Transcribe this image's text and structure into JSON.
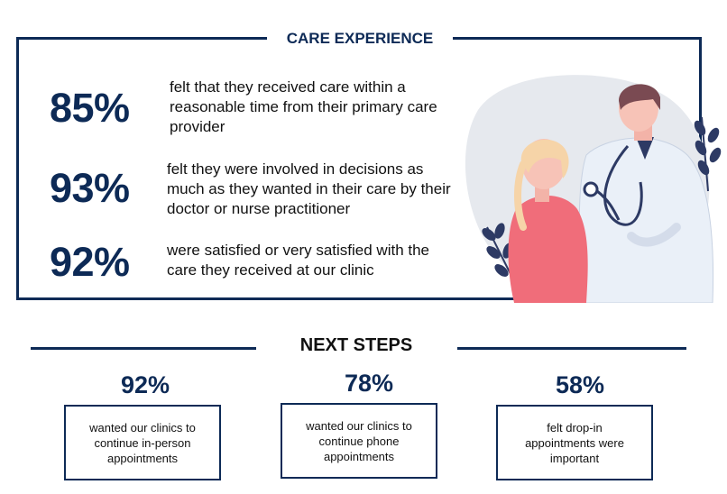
{
  "care": {
    "title": "CARE EXPERIENCE",
    "stats": [
      {
        "pct": "85%",
        "text": "felt that they received care within a reasonable time from their primary care provider"
      },
      {
        "pct": "93%",
        "text": "felt they were involved in decisions as much as they wanted in their care by their doctor or nurse practitioner"
      },
      {
        "pct": "92%",
        "text": "were satisfied or very satisfied with the care they received at our clinic"
      }
    ]
  },
  "next_steps": {
    "title": "NEXT STEPS",
    "items": [
      {
        "pct": "92%",
        "text": "wanted our clinics to continue in-person appointments"
      },
      {
        "pct": "78%",
        "text": "wanted our clinics to continue phone appointments"
      },
      {
        "pct": "58%",
        "text": "felt drop-in appointments were important"
      }
    ]
  },
  "colors": {
    "accent": "#0d2a56",
    "patient_shirt": "#f06d7a",
    "doctor_coat": "#eaf0f8",
    "background_blob": "#e6e9ee",
    "leaf": "#2d3a64"
  },
  "icons": {
    "illustration": "doctor-with-patient-illustration"
  }
}
